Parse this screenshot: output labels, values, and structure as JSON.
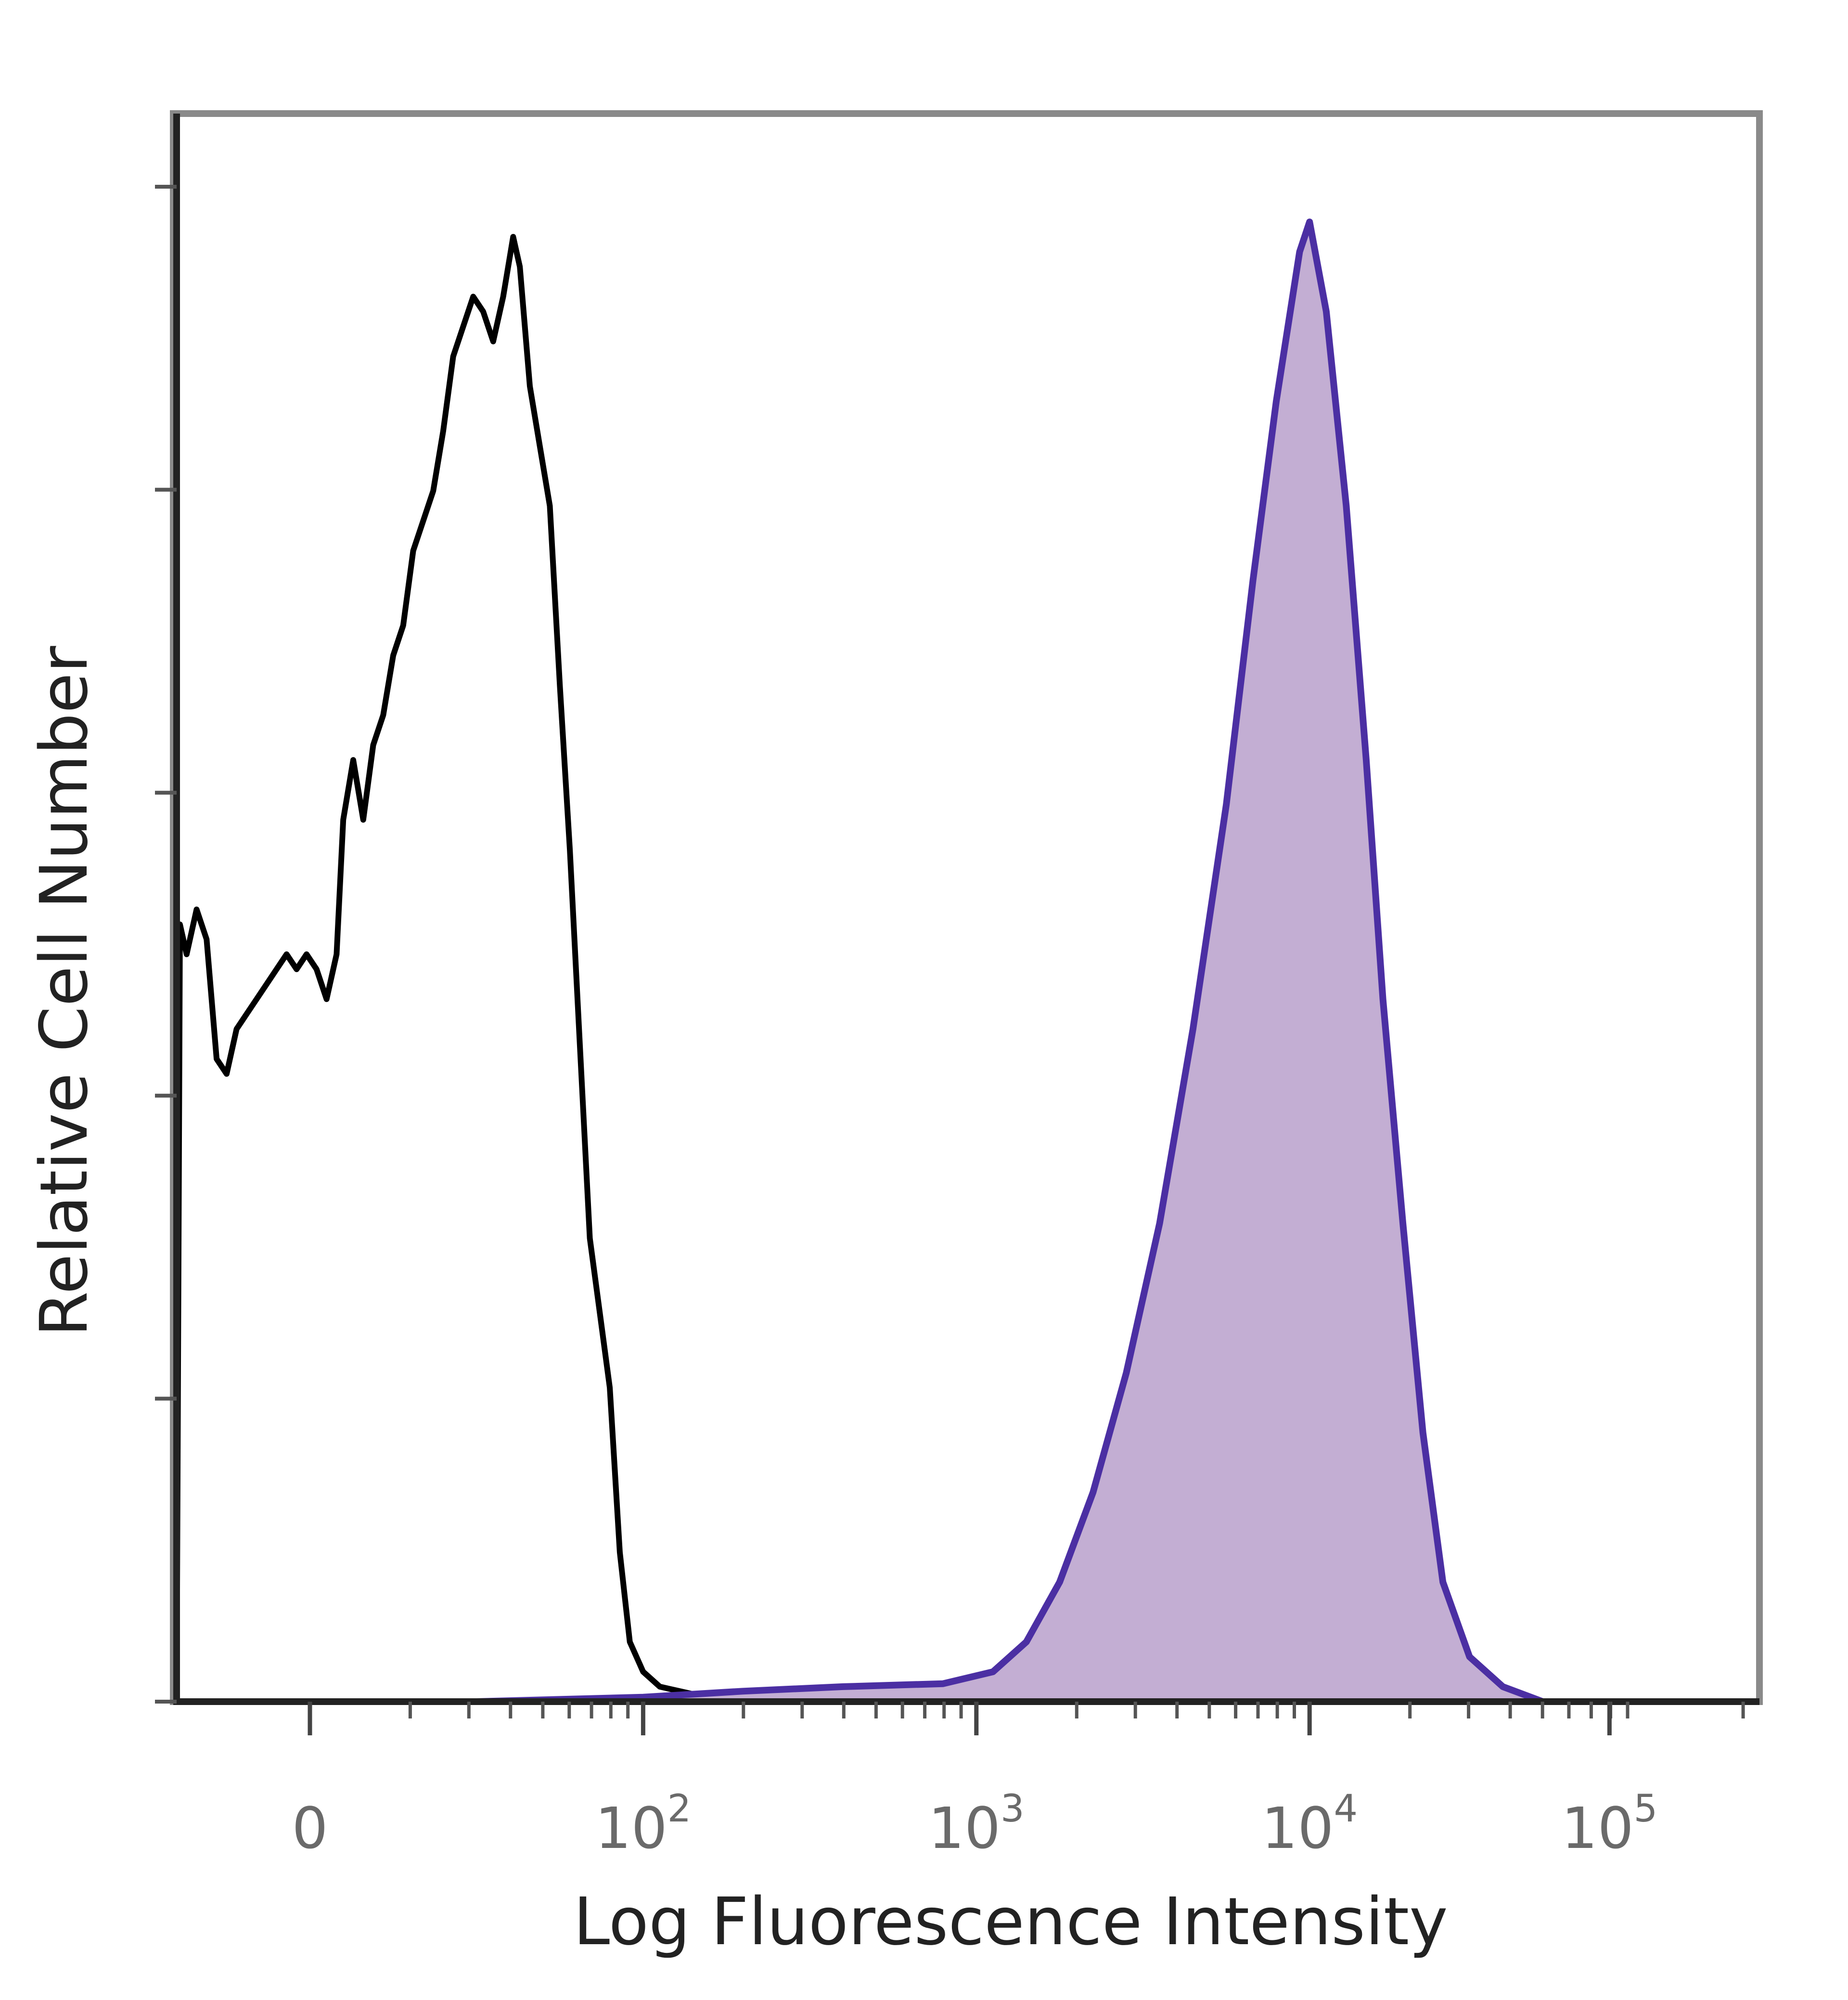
{
  "chart_data": {
    "type": "area",
    "xlabel": "Log Fluorescence Intensity",
    "ylabel": "Relative Cell Number",
    "x_scale": "biexponential",
    "x_ticks": [
      {
        "value": "0",
        "base": "0",
        "exp": ""
      },
      {
        "value": "100",
        "base": "10",
        "exp": "2"
      },
      {
        "value": "1000",
        "base": "10",
        "exp": "3"
      },
      {
        "value": "10000",
        "base": "10",
        "exp": "4"
      },
      {
        "value": "100000",
        "base": "10",
        "exp": "5"
      }
    ],
    "xlim_log_position": [
      0.6,
      5.35
    ],
    "ylim": [
      0,
      100
    ],
    "grid": false,
    "series": [
      {
        "kind": "outline",
        "color": "#000000",
        "points": [
          [
            0.6,
            0
          ],
          [
            0.61,
            52
          ],
          [
            0.63,
            50
          ],
          [
            0.66,
            53
          ],
          [
            0.69,
            51
          ],
          [
            0.72,
            43
          ],
          [
            0.75,
            42
          ],
          [
            0.78,
            45
          ],
          [
            0.81,
            46
          ],
          [
            0.84,
            47
          ],
          [
            0.87,
            48
          ],
          [
            0.9,
            49
          ],
          [
            0.93,
            50
          ],
          [
            0.96,
            49
          ],
          [
            0.99,
            50
          ],
          [
            1.02,
            49
          ],
          [
            1.05,
            47
          ],
          [
            1.08,
            50
          ],
          [
            1.1,
            59
          ],
          [
            1.13,
            63
          ],
          [
            1.16,
            59
          ],
          [
            1.19,
            64
          ],
          [
            1.22,
            66
          ],
          [
            1.25,
            70
          ],
          [
            1.28,
            72
          ],
          [
            1.31,
            77
          ],
          [
            1.34,
            79
          ],
          [
            1.37,
            81
          ],
          [
            1.4,
            85
          ],
          [
            1.43,
            90
          ],
          [
            1.46,
            92
          ],
          [
            1.49,
            94
          ],
          [
            1.52,
            93
          ],
          [
            1.55,
            91
          ],
          [
            1.58,
            94
          ],
          [
            1.61,
            98
          ],
          [
            1.63,
            96
          ],
          [
            1.66,
            88
          ],
          [
            1.69,
            84
          ],
          [
            1.72,
            80
          ],
          [
            1.75,
            68
          ],
          [
            1.78,
            57
          ],
          [
            1.81,
            44
          ],
          [
            1.84,
            31
          ],
          [
            1.87,
            26
          ],
          [
            1.9,
            21
          ],
          [
            1.93,
            10
          ],
          [
            1.96,
            4
          ],
          [
            2.0,
            2
          ],
          [
            2.05,
            1
          ],
          [
            2.15,
            0.5
          ],
          [
            2.3,
            0.3
          ],
          [
            2.6,
            0.3
          ],
          [
            2.9,
            0.2
          ],
          [
            3.3,
            0.1
          ],
          [
            3.8,
            0
          ],
          [
            4.4,
            0
          ],
          [
            5.35,
            0
          ]
        ]
      },
      {
        "kind": "filled",
        "color": "#4b2fa3",
        "fill": "#c3aed3",
        "points": [
          [
            0.6,
            0
          ],
          [
            1.5,
            0
          ],
          [
            2.0,
            0.3
          ],
          [
            2.3,
            0.7
          ],
          [
            2.6,
            1
          ],
          [
            2.9,
            1.2
          ],
          [
            3.05,
            2
          ],
          [
            3.15,
            4
          ],
          [
            3.25,
            8
          ],
          [
            3.35,
            14
          ],
          [
            3.45,
            22
          ],
          [
            3.55,
            32
          ],
          [
            3.65,
            45
          ],
          [
            3.75,
            60
          ],
          [
            3.83,
            75
          ],
          [
            3.9,
            87
          ],
          [
            3.97,
            97
          ],
          [
            4.0,
            99
          ],
          [
            4.05,
            93
          ],
          [
            4.11,
            80
          ],
          [
            4.17,
            63
          ],
          [
            4.22,
            47
          ],
          [
            4.28,
            32
          ],
          [
            4.34,
            18
          ],
          [
            4.4,
            8
          ],
          [
            4.48,
            3
          ],
          [
            4.58,
            1
          ],
          [
            4.7,
            0
          ],
          [
            5.35,
            0
          ]
        ]
      }
    ]
  }
}
